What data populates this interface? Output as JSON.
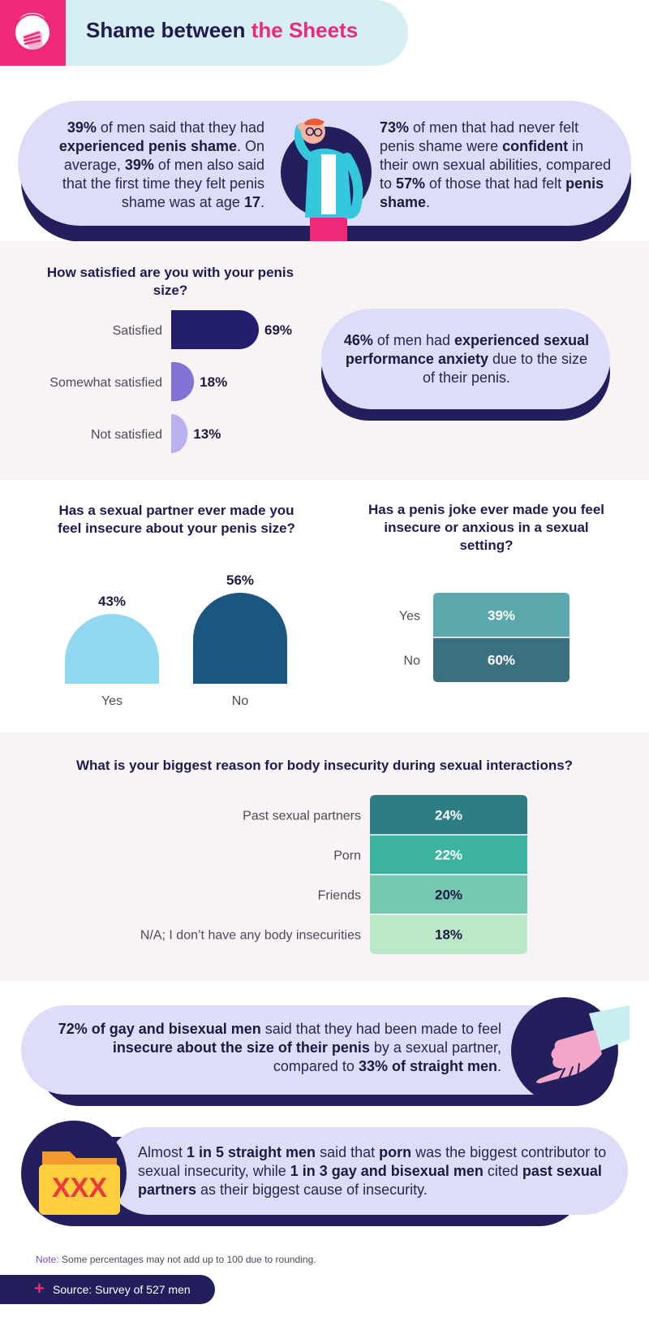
{
  "header": {
    "title_part1": "Shame between ",
    "title_part2": "the Sheets"
  },
  "intro": {
    "left": {
      "p1": "39%",
      "t1": " of men said that they had ",
      "p2": "experienced penis shame",
      "t2": ". On average, ",
      "p3": "39%",
      "t3": " of men also said that the first time they felt penis shame was at age ",
      "p4": "17",
      "t4": "."
    },
    "right": {
      "p1": "73%",
      "t1": " of men that had never felt penis shame were ",
      "p2": "confident",
      "t2": " in their own sexual abilities, compared to ",
      "p3": "57%",
      "t3": " of those that had felt ",
      "p4": "penis shame",
      "t4": "."
    }
  },
  "anxiety": {
    "p1": "46%",
    "t1": " of men had ",
    "p2": "experienced sexual performance anxiety",
    "t2": " due to the size of their penis."
  },
  "gay_bi": {
    "p1": "72% of gay and bisexual men",
    "t1": " said that they had been made to feel ",
    "p2": "insecure about the size of their penis",
    "t2": " by a sexual partner, compared to ",
    "p3": "33% of straight men",
    "t3": "."
  },
  "porn": {
    "t0": "Almost ",
    "p1": "1 in 5 straight men",
    "t1": " said that ",
    "p2": "porn",
    "t2": " was the biggest contributor to sexual insecurity, while ",
    "p3": "1 in 3 gay and bisexual men",
    "t3": " cited ",
    "p4": "past sexual partners",
    "t4": " as their biggest cause of insecurity.",
    "folder_label": "XXX"
  },
  "footer": {
    "note_label": "Note:",
    "note_text": " Some percentages may not add up to 100 due to rounding.",
    "source": "Source: Survey of 527 men"
  },
  "colors": {
    "pink": "#f0287a",
    "navy": "#231f5c",
    "lavender": "#dddcf9"
  },
  "chart_data": [
    {
      "type": "bar",
      "orientation": "horizontal",
      "title": "How satisfied are you with your penis size?",
      "categories": [
        "Satisfied",
        "Somewhat satisfied",
        "Not satisfied"
      ],
      "values": [
        69,
        18,
        13
      ],
      "labels": [
        "69%",
        "18%",
        "13%"
      ],
      "colors": [
        "#231f6e",
        "#8174d4",
        "#b8b0ef"
      ]
    },
    {
      "type": "bar",
      "title": "Has a sexual partner ever made you feel insecure about your penis size?",
      "categories": [
        "Yes",
        "No"
      ],
      "values": [
        43,
        56
      ],
      "labels": [
        "43%",
        "56%"
      ],
      "colors": [
        "#93d8f1",
        "#1a5780"
      ]
    },
    {
      "type": "bar",
      "orientation": "stacked-vertical",
      "title": "Has a penis joke ever made you feel insecure or anxious in a sexual setting?",
      "categories": [
        "Yes",
        "No"
      ],
      "values": [
        39,
        60
      ],
      "labels": [
        "39%",
        "60%"
      ],
      "colors": [
        "#5aa8ab",
        "#3a707f"
      ]
    },
    {
      "type": "table",
      "title": "What is your biggest reason for body insecurity during sexual interactions?",
      "categories": [
        "Past sexual partners",
        "Porn",
        "Friends",
        "N/A; I don’t have any body insecurities"
      ],
      "values": [
        24,
        22,
        20,
        18
      ],
      "labels": [
        "24%",
        "22%",
        "20%",
        "18%"
      ],
      "colors": [
        "#2d7e84",
        "#3bb39e",
        "#75c9b0",
        "#bbe8c6"
      ]
    }
  ]
}
